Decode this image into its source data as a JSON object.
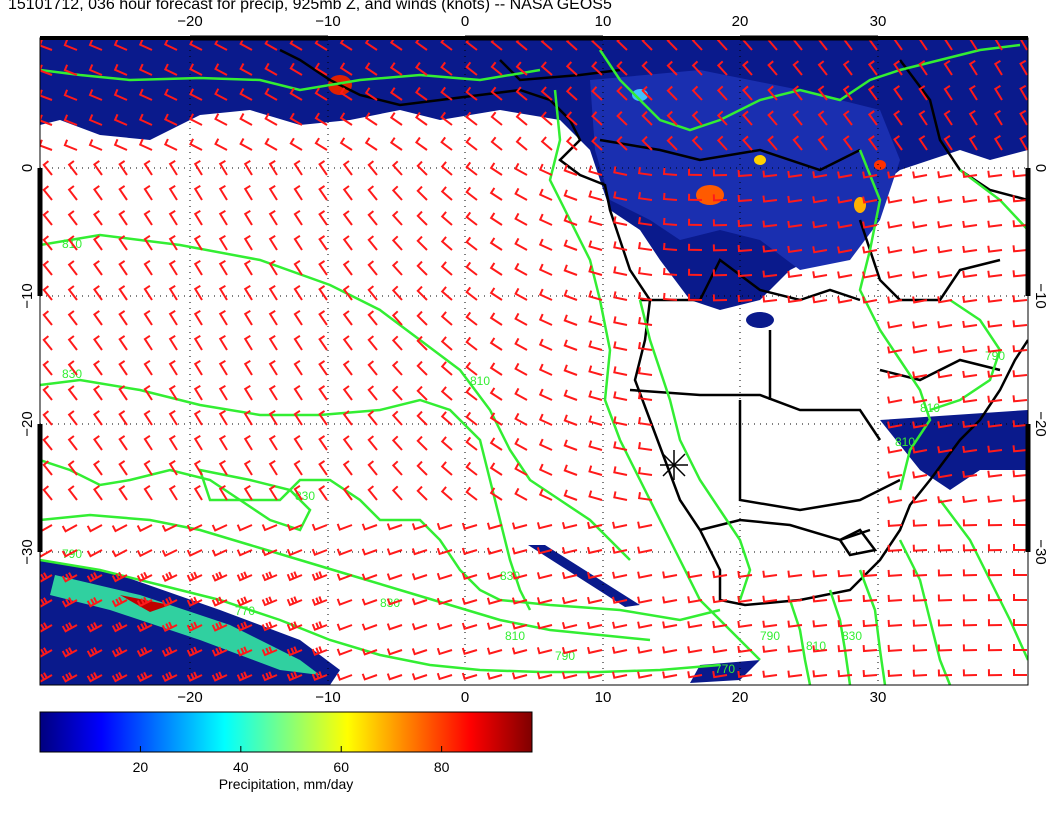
{
  "title": "15101712, 036 hour forecast for precip, 925mb Z, and winds (knots) -- NASA GEOS5",
  "colors": {
    "precip_low": "#0a1a8c",
    "contour": "#33ee33",
    "wind_barb": "#ff1a1a",
    "coastline": "#000000"
  },
  "map": {
    "lon_range": [
      -30,
      40
    ],
    "lat_range": [
      -40,
      10
    ],
    "lon_ticks": [
      -20,
      -10,
      0,
      10,
      20,
      30
    ],
    "lat_ticks": [
      0,
      -10,
      -20,
      -30
    ],
    "lon_tick_labels": [
      "−20",
      "−10",
      "0",
      "10",
      "20",
      "30"
    ],
    "lat_tick_labels": [
      "0",
      "−10",
      "−20",
      "−30"
    ],
    "contour_labels": [
      "810",
      "830",
      "810",
      "790",
      "770",
      "830",
      "830",
      "810",
      "790",
      "770",
      "790",
      "810",
      "830",
      "810",
      "810",
      "790",
      "830"
    ],
    "marker": "star"
  },
  "colorbar": {
    "label": "Precipitation, mm/day",
    "ticks": [
      20,
      40,
      60,
      80
    ],
    "tick_labels": [
      "20",
      "40",
      "60",
      "80"
    ],
    "range": [
      0,
      98
    ],
    "colors": [
      "#00007f",
      "#0000ff",
      "#007fff",
      "#00ffff",
      "#7fff7f",
      "#ffff00",
      "#ff7f00",
      "#ff0000",
      "#7f0000"
    ]
  }
}
